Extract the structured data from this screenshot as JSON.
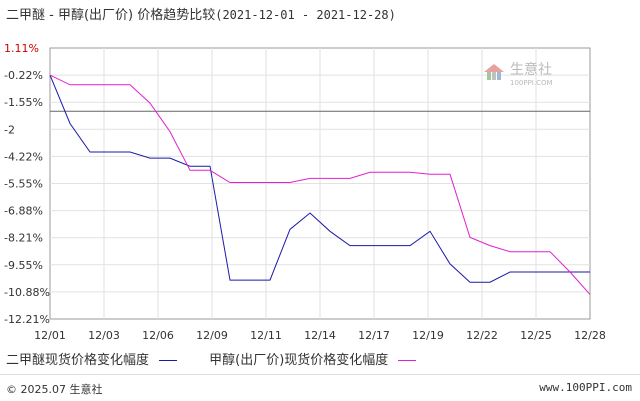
{
  "title": {
    "main": "二甲醚 - 甲醇(出厂价) 价格趋势比较",
    "range": "(2021-12-01 - 2021-12-28)"
  },
  "watermark": {
    "text": "生意社",
    "url": "100PPI.COM"
  },
  "chart_data": {
    "type": "line",
    "y_ticks": [
      "1.11%",
      "-0.22%",
      "-1.55%",
      "-2",
      "-4.22%",
      "-5.55%",
      "-6.88%",
      "-8.21%",
      "-9.55%",
      "-10.88%",
      "-12.21%"
    ],
    "x_ticks": [
      "12/01",
      "12/03",
      "12/06",
      "12/09",
      "12/11",
      "12/14",
      "12/17",
      "12/19",
      "12/22",
      "12/25",
      "12/28"
    ],
    "ylim": [
      -12.21,
      1.11
    ],
    "reference_line": -2,
    "grid": true,
    "x_points": 28,
    "series": [
      {
        "name": "二甲醚现货价格变化幅度",
        "color": "#1a1aaa",
        "values": [
          -0.22,
          -2.6,
          -4.0,
          -4.0,
          -4.0,
          -4.3,
          -4.3,
          -4.7,
          -4.7,
          -10.3,
          -10.3,
          -10.3,
          -7.8,
          -7.0,
          -7.9,
          -8.6,
          -8.6,
          -8.6,
          -8.6,
          -7.9,
          -9.5,
          -10.4,
          -10.4,
          -9.9,
          -9.9,
          -9.9,
          -9.9,
          -9.9
        ]
      },
      {
        "name": "甲醇(出厂价)现货价格变化幅度",
        "color": "#e020d0",
        "values": [
          -0.22,
          -0.7,
          -0.7,
          -0.7,
          -0.7,
          -1.6,
          -3.0,
          -4.9,
          -4.9,
          -5.5,
          -5.5,
          -5.5,
          -5.5,
          -5.3,
          -5.3,
          -5.3,
          -5.0,
          -5.0,
          -5.0,
          -5.1,
          -5.1,
          -8.2,
          -8.6,
          -8.9,
          -8.9,
          -8.9,
          -9.9,
          -11.0
        ]
      }
    ]
  },
  "legend": {
    "series1": "二甲醚现货价格变化幅度",
    "series2": "甲醇(出厂价)现货价格变化幅度"
  },
  "footer": {
    "copyright": "© 2025.07 生意社",
    "site": "www.100PPI.com"
  }
}
